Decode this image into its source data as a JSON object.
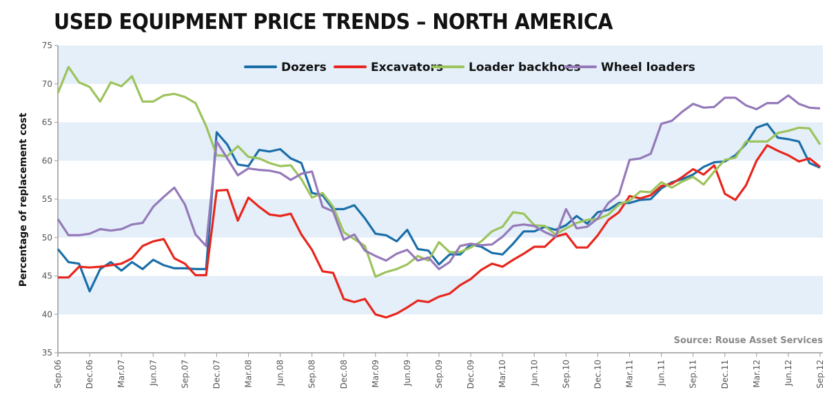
{
  "title": "USED EQUIPMENT PRICE TRENDS – NORTH AMERICA",
  "chart_data": {
    "type": "line",
    "title": "USED EQUIPMENT PRICE TRENDS – NORTH AMERICA",
    "xlabel": "",
    "ylabel": "Percentage of replacement cost",
    "ylim": [
      35,
      75
    ],
    "yticks": [
      35,
      40,
      45,
      50,
      55,
      60,
      65,
      70,
      75
    ],
    "x_range": [
      "Sep.06",
      "Sep.12"
    ],
    "x_frequency": "monthly",
    "xtick_labels": [
      "Sep.06",
      "Dec.06",
      "Mar.07",
      "Jun.07",
      "Sep.07",
      "Dec.07",
      "Mar.08",
      "Jun.08",
      "Sep.08",
      "Dec.08",
      "Mar.09",
      "Jun.09",
      "Sep.09",
      "Dec.09",
      "Mar.10",
      "Jun.10",
      "Sep.10",
      "Dec.10",
      "Mar.11",
      "Jun.11",
      "Sep.11",
      "Dec.11",
      "Mar.12",
      "Jun.12",
      "Sep.12"
    ],
    "grid": "alternating horizontal bands",
    "legend_position": "top",
    "source": "Source: Rouse Asset Services",
    "series": [
      {
        "name": "Dozers",
        "color": "#1a6ea8",
        "values": [
          48.5,
          46.8,
          46.6,
          43,
          45.9,
          46.8,
          45.7,
          46.8,
          45.9,
          47.1,
          46.4,
          46,
          46,
          45.9,
          45.9,
          63.7,
          62.1,
          59.5,
          59.3,
          61.4,
          61.2,
          61.5,
          60.3,
          59.7,
          55.8,
          55.5,
          53.7,
          53.7,
          54.2,
          52.5,
          50.5,
          50.3,
          49.5,
          51,
          48.5,
          48.3,
          46.5,
          47.8,
          47.8,
          49.1,
          48.8,
          48,
          47.8,
          49.2,
          50.8,
          50.8,
          51.4,
          51,
          51.6,
          52.8,
          51.8,
          53.3,
          53.6,
          54.5,
          54.5,
          54.9,
          55,
          56.4,
          57.2,
          57.6,
          58.2,
          59.2,
          59.8,
          59.9,
          60.7,
          62.2,
          64.3,
          64.8,
          63,
          62.8,
          62.5,
          59.7,
          59.1
        ]
      },
      {
        "name": "Excavators",
        "color": "#e8251c",
        "values": [
          44.8,
          44.8,
          46.2,
          46.1,
          46.2,
          46.4,
          46.6,
          47.3,
          48.9,
          49.5,
          49.8,
          47.3,
          46.6,
          45.1,
          45.1,
          56.1,
          56.2,
          52.2,
          55.2,
          54,
          53,
          52.8,
          53.1,
          50.4,
          48.4,
          45.6,
          45.4,
          42,
          41.6,
          42,
          40,
          39.6,
          40.1,
          40.9,
          41.8,
          41.6,
          42.3,
          42.7,
          43.8,
          44.6,
          45.8,
          46.6,
          46.2,
          47.1,
          47.9,
          48.8,
          48.8,
          50.1,
          50.5,
          48.7,
          48.7,
          50.3,
          52.3,
          53.3,
          55.4,
          55.1,
          55.5,
          56.7,
          57,
          57.9,
          58.9,
          58.2,
          59.4,
          55.7,
          54.9,
          56.8,
          60,
          62,
          61.3,
          60.7,
          59.9,
          60.3,
          59.2
        ]
      },
      {
        "name": "Loader backhoes",
        "color": "#9cc35c",
        "values": [
          68.8,
          72.2,
          70.2,
          69.6,
          67.7,
          70.2,
          69.7,
          71,
          67.7,
          67.7,
          68.5,
          68.7,
          68.3,
          67.5,
          64.5,
          60.7,
          60.6,
          61.9,
          60.5,
          60.3,
          59.7,
          59.3,
          59.4,
          57.6,
          55.2,
          55.8,
          54,
          50.7,
          49.8,
          48.9,
          44.9,
          45.5,
          45.9,
          46.5,
          47.6,
          47,
          49.4,
          48.1,
          48.1,
          48.7,
          49.5,
          50.8,
          51.4,
          53.3,
          53.1,
          51.6,
          51.5,
          50.4,
          51.2,
          51.9,
          52.3,
          52.4,
          53,
          54.3,
          54.8,
          56,
          55.9,
          57.2,
          56.5,
          57.3,
          57.9,
          56.9,
          58.6,
          60.1,
          60.4,
          62.5,
          62.5,
          62.5,
          63.6,
          63.9,
          64.3,
          64.2,
          62.1
        ]
      },
      {
        "name": "Wheel loaders",
        "color": "#9579b9",
        "values": [
          52.4,
          50.3,
          50.3,
          50.5,
          51.1,
          50.9,
          51.1,
          51.7,
          51.9,
          54,
          55.3,
          56.5,
          54.3,
          50.4,
          48.9,
          62.5,
          60.3,
          58.1,
          59,
          58.8,
          58.7,
          58.4,
          57.5,
          58.3,
          58.6,
          54,
          53.4,
          49.7,
          50.4,
          48.3,
          47.6,
          47,
          47.9,
          48.4,
          47,
          47.4,
          45.9,
          46.8,
          48.9,
          49.2,
          49,
          49.1,
          50.1,
          51.5,
          51.7,
          51.5,
          50.7,
          50.1,
          53.7,
          51.2,
          51.4,
          52.5,
          54.5,
          55.6,
          60.1,
          60.3,
          60.9,
          64.8,
          65.2,
          66.4,
          67.4,
          66.9,
          67,
          68.2,
          68.2,
          67.2,
          66.7,
          67.5,
          67.5,
          68.5,
          67.4,
          66.9,
          66.8
        ]
      }
    ]
  }
}
